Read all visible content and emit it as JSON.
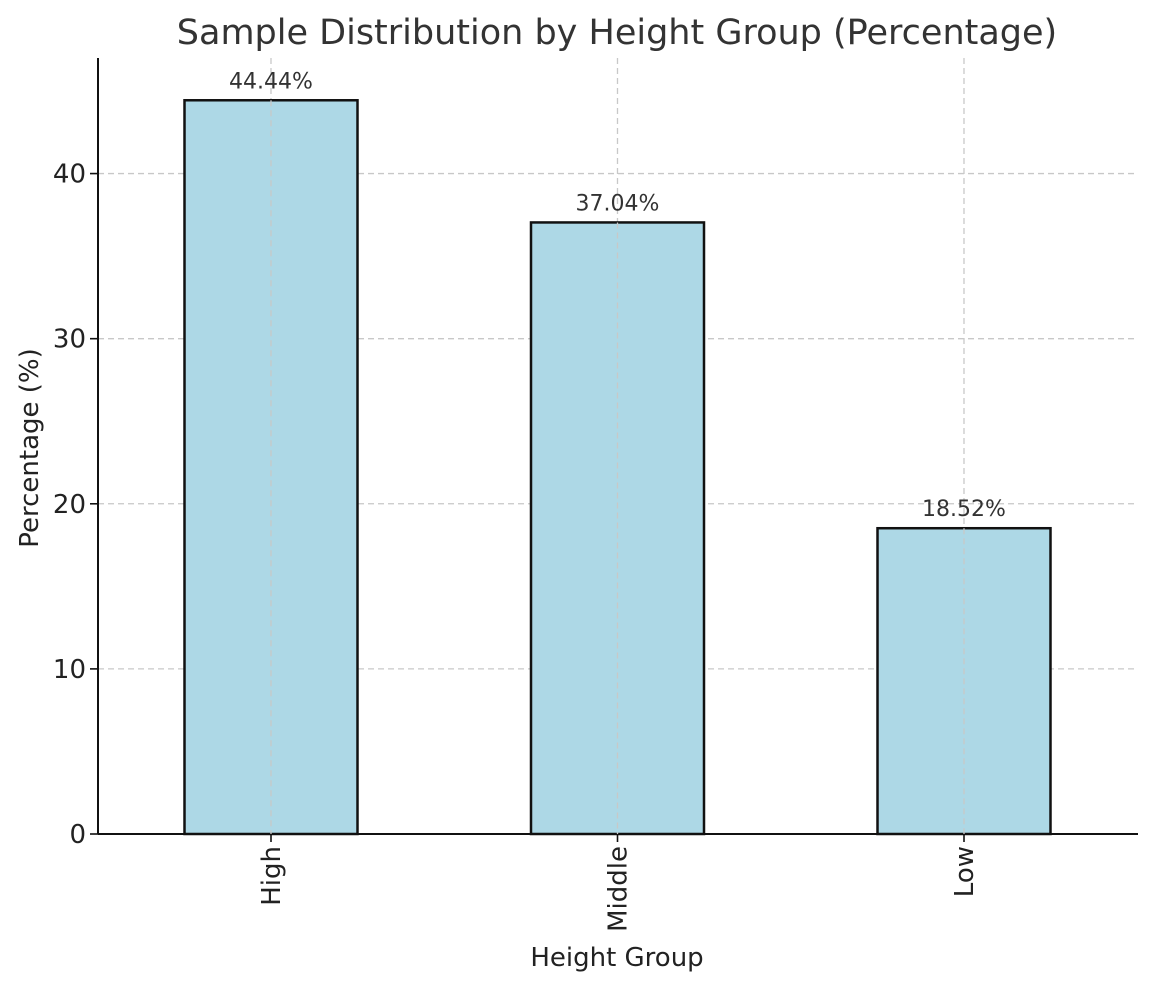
{
  "chart_data": {
    "type": "bar",
    "title": "Sample Distribution by Height Group (Percentage)",
    "xlabel": "Height Group",
    "ylabel": "Percentage (%)",
    "categories": [
      "High",
      "Middle",
      "Low"
    ],
    "values": [
      44.44,
      37.04,
      18.52
    ],
    "value_labels": [
      "44.44%",
      "37.04%",
      "18.52%"
    ],
    "ylim": [
      0,
      47
    ],
    "yticks": [
      0,
      10,
      20,
      30,
      40
    ],
    "grid": true,
    "bar_color": "#add8e6",
    "edge_color": "#111111"
  }
}
